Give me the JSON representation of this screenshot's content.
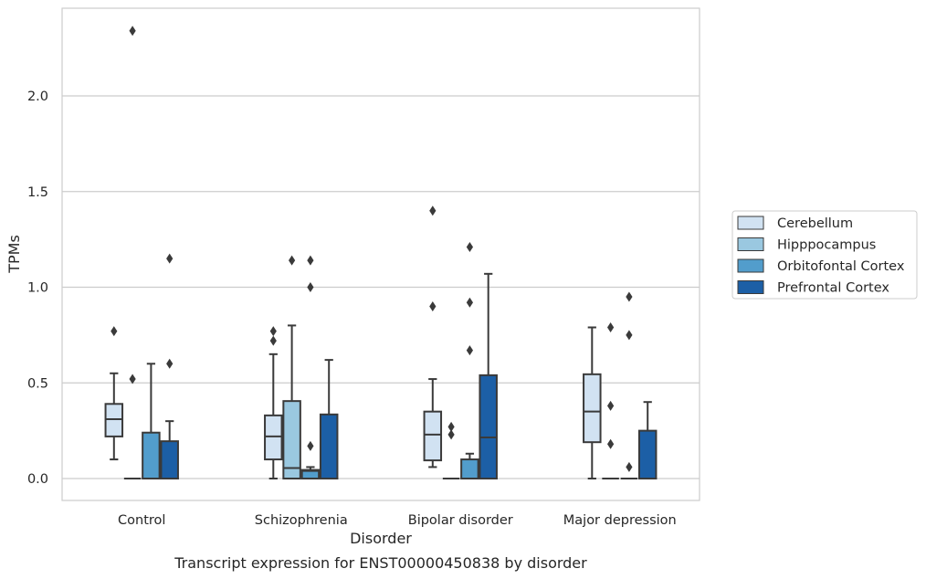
{
  "chart_data": {
    "type": "box",
    "caption": "Transcript expression for ENST00000450838 by disorder",
    "xlabel": "Disorder",
    "ylabel": "TPMs",
    "ylim": [
      -0.11,
      2.46
    ],
    "yticks": [
      "0.0",
      "0.5",
      "1.0",
      "1.5",
      "2.0"
    ],
    "grid": true,
    "legend_placement": "right",
    "categories": [
      "Control",
      "Schizophrenia",
      "Bipolar disorder",
      "Major depression"
    ],
    "series": [
      {
        "name": "Cerebellum",
        "color": "#d1e2f2",
        "boxes": [
          {
            "category": "Control",
            "q1": 0.22,
            "median": 0.31,
            "q3": 0.39,
            "whisker_low": 0.1,
            "whisker_high": 0.55,
            "outliers": [
              0.77
            ]
          },
          {
            "category": "Schizophrenia",
            "q1": 0.1,
            "median": 0.22,
            "q3": 0.33,
            "whisker_low": 0.0,
            "whisker_high": 0.65,
            "outliers": [
              0.72,
              0.77
            ]
          },
          {
            "category": "Bipolar disorder",
            "q1": 0.095,
            "median": 0.23,
            "q3": 0.35,
            "whisker_low": 0.06,
            "whisker_high": 0.52,
            "outliers": [
              0.9,
              1.4
            ]
          },
          {
            "category": "Major depression",
            "q1": 0.19,
            "median": 0.35,
            "q3": 0.545,
            "whisker_low": 0.0,
            "whisker_high": 0.79,
            "outliers": []
          }
        ]
      },
      {
        "name": "Hipppocampus",
        "color": "#9ac8e0",
        "boxes": [
          {
            "category": "Control",
            "q1": 0.0,
            "median": 0.0,
            "q3": 0.0,
            "whisker_low": 0.0,
            "whisker_high": 0.0,
            "outliers": [
              0.52,
              2.34
            ]
          },
          {
            "category": "Schizophrenia",
            "q1": 0.0,
            "median": 0.055,
            "q3": 0.405,
            "whisker_low": 0.0,
            "whisker_high": 0.8,
            "outliers": [
              1.14
            ]
          },
          {
            "category": "Bipolar disorder",
            "q1": 0.0,
            "median": 0.0,
            "q3": 0.0,
            "whisker_low": 0.0,
            "whisker_high": 0.0,
            "outliers": [
              0.23,
              0.27
            ]
          },
          {
            "category": "Major depression",
            "q1": 0.0,
            "median": 0.0,
            "q3": 0.0,
            "whisker_low": 0.0,
            "whisker_high": 0.0,
            "outliers": [
              0.18,
              0.38,
              0.79
            ]
          }
        ]
      },
      {
        "name": "Orbitofontal Cortex",
        "color": "#529dcc",
        "boxes": [
          {
            "category": "Control",
            "q1": 0.0,
            "median": 0.0,
            "q3": 0.24,
            "whisker_low": 0.0,
            "whisker_high": 0.6,
            "outliers": []
          },
          {
            "category": "Schizophrenia",
            "q1": 0.0,
            "median": 0.04,
            "q3": 0.045,
            "whisker_low": 0.0,
            "whisker_high": 0.06,
            "outliers": [
              0.17,
              1.0,
              1.14
            ]
          },
          {
            "category": "Bipolar disorder",
            "q1": 0.0,
            "median": 0.0,
            "q3": 0.1,
            "whisker_low": 0.0,
            "whisker_high": 0.13,
            "outliers": [
              0.67,
              0.92,
              1.21
            ]
          },
          {
            "category": "Major depression",
            "q1": 0.0,
            "median": 0.0,
            "q3": 0.0,
            "whisker_low": 0.0,
            "whisker_high": 0.0,
            "outliers": [
              0.06,
              0.75,
              0.95
            ]
          }
        ]
      },
      {
        "name": "Prefrontal Cortex",
        "color": "#1c5fa6",
        "boxes": [
          {
            "category": "Control",
            "q1": 0.0,
            "median": 0.0,
            "q3": 0.195,
            "whisker_low": 0.0,
            "whisker_high": 0.3,
            "outliers": [
              0.6,
              1.15
            ]
          },
          {
            "category": "Schizophrenia",
            "q1": 0.0,
            "median": 0.0,
            "q3": 0.335,
            "whisker_low": 0.0,
            "whisker_high": 0.62,
            "outliers": []
          },
          {
            "category": "Bipolar disorder",
            "q1": 0.0,
            "median": 0.215,
            "q3": 0.54,
            "whisker_low": 0.0,
            "whisker_high": 1.07,
            "outliers": []
          },
          {
            "category": "Major depression",
            "q1": 0.0,
            "median": 0.0,
            "q3": 0.25,
            "whisker_low": 0.0,
            "whisker_high": 0.4,
            "outliers": []
          }
        ]
      }
    ]
  }
}
